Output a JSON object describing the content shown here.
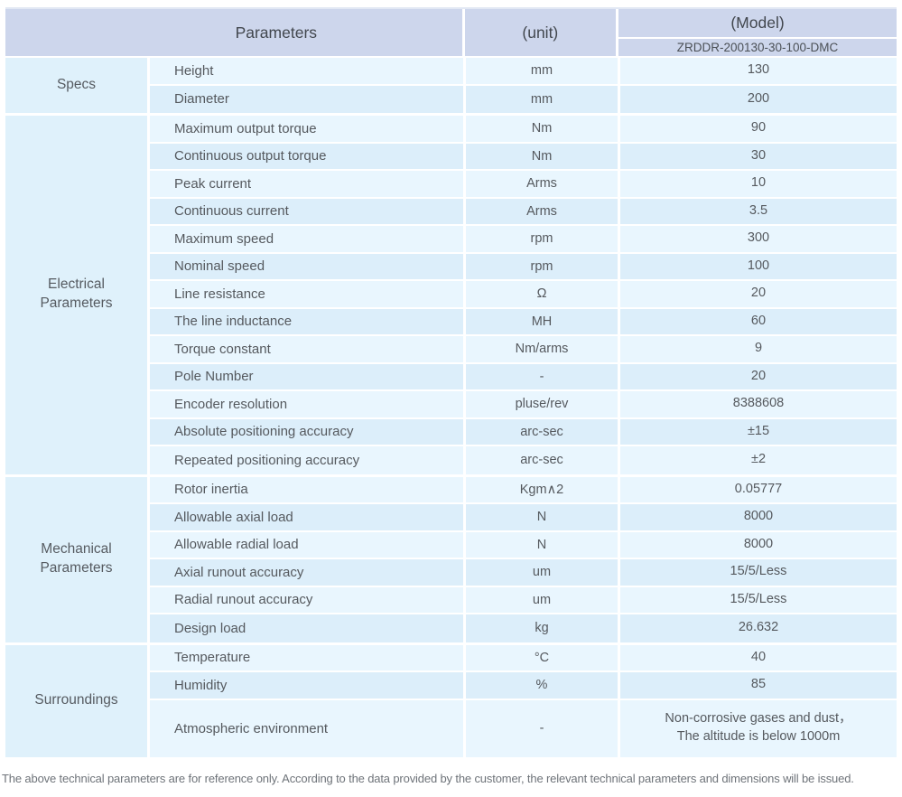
{
  "header": {
    "parameters_label": "Parameters",
    "unit_label": "(unit)",
    "model_label": "(Model)",
    "model_value": "ZRDDR-200130-30-100-DMC"
  },
  "table": {
    "sections": [
      {
        "label": "Specs",
        "rows": [
          {
            "param": "Height",
            "unit": "mm",
            "value": "130"
          },
          {
            "param": "Diameter",
            "unit": "mm",
            "value": "200"
          }
        ]
      },
      {
        "label": "Electrical Parameters",
        "rows": [
          {
            "param": "Maximum output torque",
            "unit": "Nm",
            "value": "90"
          },
          {
            "param": "Continuous output torque",
            "unit": "Nm",
            "value": "30"
          },
          {
            "param": "Peak current",
            "unit": "Arms",
            "value": "10"
          },
          {
            "param": "Continuous current",
            "unit": "Arms",
            "value": "3.5"
          },
          {
            "param": "Maximum speed",
            "unit": "rpm",
            "value": "300"
          },
          {
            "param": "Nominal speed",
            "unit": "rpm",
            "value": "100"
          },
          {
            "param": "Line resistance",
            "unit": "Ω",
            "value": "20"
          },
          {
            "param": "The line inductance",
            "unit": "MH",
            "value": "60"
          },
          {
            "param": "Torque constant",
            "unit": "Nm/arms",
            "value": "9"
          },
          {
            "param": "Pole Number",
            "unit": "-",
            "value": "20"
          },
          {
            "param": "Encoder resolution",
            "unit": "pluse/rev",
            "value": "8388608"
          },
          {
            "param": "Absolute positioning accuracy",
            "unit": "arc-sec",
            "value": "±15"
          },
          {
            "param": "Repeated positioning accuracy",
            "unit": "arc-sec",
            "value": "±2"
          }
        ]
      },
      {
        "label": "Mechanical Parameters",
        "rows": [
          {
            "param": "Rotor inertia",
            "unit": "Kgm∧2",
            "value": "0.05777"
          },
          {
            "param": "Allowable axial load",
            "unit": "N",
            "value": "8000"
          },
          {
            "param": "Allowable radial load",
            "unit": "N",
            "value": "8000"
          },
          {
            "param": "Axial runout accuracy",
            "unit": "um",
            "value": "15/5/Less"
          },
          {
            "param": "Radial runout accuracy",
            "unit": "um",
            "value": "15/5/Less"
          },
          {
            "param": "Design load",
            "unit": "kg",
            "value": "26.632"
          }
        ]
      },
      {
        "label": "Surroundings",
        "rows": [
          {
            "param": "Temperature",
            "unit": "°C",
            "value": "40"
          },
          {
            "param": "Humidity",
            "unit": "%",
            "value": "85"
          },
          {
            "param": "Atmospheric environment",
            "unit": "-",
            "tall": true,
            "value_lines": [
              "Non-corrosive gases and dust，",
              "The altitude is below 1000m"
            ]
          }
        ]
      }
    ]
  },
  "footer": {
    "note": "The above technical parameters are for reference only. According to the data provided by the customer, the relevant technical parameters and dimensions will be issued."
  },
  "colors": {
    "header_bg": "#cdd6ec",
    "row_light": "#e9f6fe",
    "row_dark": "#dceefa",
    "label_column_bg": "#dff1fb",
    "separator": "#ffffff",
    "body_text": "#55595e",
    "footer_text": "#6e7379"
  }
}
